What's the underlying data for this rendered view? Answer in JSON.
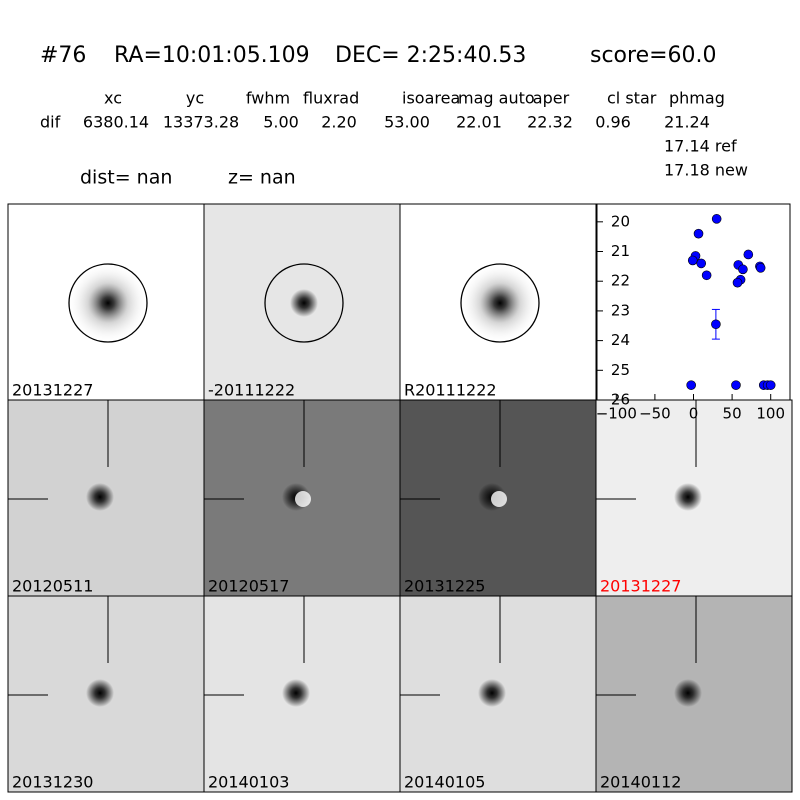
{
  "header": {
    "id": "#76",
    "ra": "RA=10:01:05.109",
    "dec": "DEC= 2:25:40.53",
    "score": "score=60.0",
    "dist": "dist=   nan",
    "z": "z=   nan"
  },
  "table": {
    "columns": [
      "xc",
      "yc",
      "fwhm",
      "fluxrad",
      "isoarea",
      "mag auto",
      "aper",
      "cl star",
      "phmag"
    ],
    "row_label": "dif",
    "values": [
      "6380.14",
      "13373.28",
      "5.00",
      "2.20",
      "53.00",
      "22.01",
      "22.32",
      "0.96",
      "21.24"
    ],
    "notes": [
      "17.14 ref",
      "17.18 new"
    ]
  },
  "panels": [
    {
      "label": "20131227",
      "label_color": "#000000",
      "background": "#ffffff",
      "marker": "circle"
    },
    {
      "label": "-20111222",
      "label_color": "#000000",
      "background": "#e6e6e6",
      "marker": "circle"
    },
    {
      "label": "R20111222",
      "label_color": "#000000",
      "background": "#ffffff",
      "marker": "circle"
    },
    {
      "label": "20120511",
      "label_color": "#000000",
      "background": "#d2d2d2",
      "marker": "cross"
    },
    {
      "label": "20120517",
      "label_color": "#000000",
      "background": "#7a7a7a",
      "marker": "cross"
    },
    {
      "label": "20131225",
      "label_color": "#000000",
      "background": "#555555",
      "marker": "cross"
    },
    {
      "label": "20131227",
      "label_color": "#ff0000",
      "background": "#eeeeee",
      "marker": "cross"
    },
    {
      "label": "20131230",
      "label_color": "#000000",
      "background": "#d9d9d9",
      "marker": "cross"
    },
    {
      "label": "20140103",
      "label_color": "#000000",
      "background": "#e4e4e4",
      "marker": "cross"
    },
    {
      "label": "20140105",
      "label_color": "#000000",
      "background": "#dedede",
      "marker": "cross"
    },
    {
      "label": "20140112",
      "label_color": "#000000",
      "background": "#b4b4b4",
      "marker": "cross"
    }
  ],
  "chart_data": {
    "type": "scatter",
    "color": "#0000ff",
    "x": [
      30,
      6.5,
      2.6,
      -1,
      10,
      17,
      71,
      58,
      64,
      86,
      87,
      61,
      57,
      29,
      -3,
      55,
      91,
      96,
      100
    ],
    "values": [
      19.9,
      20.4,
      21.15,
      21.3,
      21.4,
      21.8,
      21.1,
      21.45,
      21.6,
      21.5,
      21.55,
      21.95,
      22.05,
      23.45,
      25.5,
      25.5,
      25.5,
      25.5,
      25.5
    ],
    "errors": [
      null,
      null,
      null,
      null,
      null,
      null,
      null,
      null,
      null,
      null,
      null,
      null,
      null,
      0.5,
      null,
      null,
      null,
      null,
      null
    ],
    "xlim": [
      -125,
      125
    ],
    "ylim": [
      26,
      19.4
    ],
    "xticks": [
      {
        "value": -100,
        "label": "−100"
      },
      {
        "value": -50,
        "label": "−50"
      },
      0,
      50,
      100
    ],
    "yticks": [
      20,
      21,
      22,
      23,
      24,
      25,
      26
    ]
  }
}
